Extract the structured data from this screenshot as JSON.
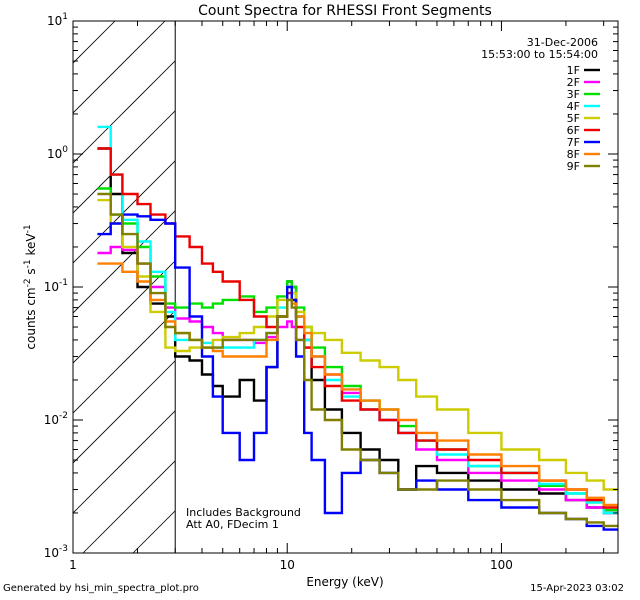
{
  "chart_data": {
    "type": "line",
    "title": "Count Spectra for RHESSI Front Segments",
    "xlabel": "Energy (keV)",
    "ylabel": "counts cm^-2 s^-1 keV^-1",
    "x_scale": "log",
    "y_scale": "log",
    "xlim": [
      1,
      350
    ],
    "ylim": [
      0.001,
      10
    ],
    "x_ticks": [
      {
        "value": 1,
        "label": "1"
      },
      {
        "value": 10,
        "label": "10"
      },
      {
        "value": 100,
        "label": "100"
      }
    ],
    "y_ticks": [
      {
        "value": 0.001,
        "label": "10^-3"
      },
      {
        "value": 0.01,
        "label": "10^-2"
      },
      {
        "value": 0.1,
        "label": "10^-1"
      },
      {
        "value": 1,
        "label": "10^0"
      },
      {
        "value": 10,
        "label": "10^1"
      }
    ],
    "hatched_region_keV": [
      1,
      3
    ],
    "legend_position": "top-right",
    "date": "31-Dec-2006",
    "time_range": "15:53:00 to 15:54:00",
    "annotation_lines": [
      "Includes Background",
      "Att A0, FDecim 1"
    ],
    "series": [
      {
        "name": "1F",
        "color": "#000000",
        "x": [
          1.3,
          1.5,
          1.7,
          2.0,
          2.3,
          2.7,
          3.0,
          3.5,
          4.0,
          4.5,
          5.0,
          6.0,
          7.0,
          8.0,
          9.0,
          10.0,
          10.5,
          11.0,
          12.0,
          13.0,
          15.0,
          18.0,
          22.0,
          27.0,
          33.0,
          40.0,
          50.0,
          70.0,
          100.0,
          150.0,
          200.0,
          250.0,
          300.0
        ],
        "y": [
          1.1,
          0.5,
          0.18,
          0.1,
          0.075,
          0.06,
          0.03,
          0.028,
          0.022,
          0.018,
          0.015,
          0.02,
          0.014,
          0.025,
          0.06,
          0.11,
          0.1,
          0.06,
          0.04,
          0.02,
          0.012,
          0.008,
          0.006,
          0.005,
          0.003,
          0.0045,
          0.004,
          0.0035,
          0.003,
          0.0028,
          0.0025,
          0.0022,
          0.002
        ]
      },
      {
        "name": "2F",
        "color": "#ff00ff",
        "x": [
          1.3,
          1.5,
          1.7,
          2.0,
          2.3,
          2.7,
          3.0,
          3.5,
          4.0,
          4.5,
          5.0,
          6.0,
          7.0,
          8.0,
          9.0,
          10.0,
          10.5,
          11.0,
          12.0,
          13.0,
          15.0,
          18.0,
          22.0,
          27.0,
          33.0,
          40.0,
          50.0,
          70.0,
          100.0,
          150.0,
          200.0,
          250.0,
          300.0
        ],
        "y": [
          0.18,
          0.2,
          0.19,
          0.15,
          0.1,
          0.07,
          0.058,
          0.055,
          0.05,
          0.045,
          0.04,
          0.04,
          0.038,
          0.042,
          0.05,
          0.055,
          0.05,
          0.04,
          0.035,
          0.03,
          0.022,
          0.016,
          0.012,
          0.01,
          0.008,
          0.006,
          0.005,
          0.004,
          0.0035,
          0.003,
          0.0025,
          0.0022,
          0.002
        ]
      },
      {
        "name": "3F",
        "color": "#00e000",
        "x": [
          1.3,
          1.5,
          1.7,
          2.0,
          2.3,
          2.7,
          3.0,
          3.5,
          4.0,
          4.5,
          5.0,
          6.0,
          7.0,
          8.0,
          9.0,
          10.0,
          10.5,
          11.0,
          12.0,
          13.0,
          15.0,
          18.0,
          22.0,
          27.0,
          33.0,
          40.0,
          50.0,
          70.0,
          100.0,
          150.0,
          200.0,
          250.0,
          300.0
        ],
        "y": [
          0.55,
          0.35,
          0.3,
          0.2,
          0.12,
          0.075,
          0.07,
          0.075,
          0.07,
          0.075,
          0.08,
          0.085,
          0.065,
          0.07,
          0.085,
          0.11,
          0.1,
          0.07,
          0.05,
          0.035,
          0.025,
          0.018,
          0.014,
          0.012,
          0.009,
          0.007,
          0.006,
          0.0045,
          0.004,
          0.0032,
          0.0028,
          0.0024,
          0.0021
        ]
      },
      {
        "name": "4F",
        "color": "#00ffff",
        "x": [
          1.3,
          1.5,
          1.7,
          2.0,
          2.3,
          2.7,
          3.0,
          3.5,
          4.0,
          4.5,
          5.0,
          6.0,
          7.0,
          8.0,
          9.0,
          10.0,
          10.5,
          11.0,
          12.0,
          13.0,
          15.0,
          18.0,
          22.0,
          27.0,
          33.0,
          40.0,
          50.0,
          70.0,
          100.0,
          150.0,
          200.0,
          250.0,
          300.0
        ],
        "y": [
          1.6,
          0.7,
          0.32,
          0.22,
          0.13,
          0.065,
          0.04,
          0.04,
          0.038,
          0.035,
          0.035,
          0.035,
          0.04,
          0.045,
          0.07,
          0.1,
          0.09,
          0.06,
          0.04,
          0.03,
          0.02,
          0.015,
          0.012,
          0.01,
          0.008,
          0.007,
          0.0055,
          0.0045,
          0.004,
          0.0033,
          0.0028,
          0.0024,
          0.002
        ]
      },
      {
        "name": "5F",
        "color": "#cccc00",
        "x": [
          1.3,
          1.5,
          1.7,
          2.0,
          2.3,
          2.7,
          3.0,
          3.5,
          4.0,
          4.5,
          5.0,
          6.0,
          7.0,
          8.0,
          9.0,
          10.0,
          10.5,
          11.0,
          12.0,
          13.0,
          15.0,
          18.0,
          22.0,
          27.0,
          33.0,
          40.0,
          50.0,
          70.0,
          100.0,
          150.0,
          200.0,
          250.0,
          300.0
        ],
        "y": [
          0.45,
          0.3,
          0.2,
          0.12,
          0.065,
          0.035,
          0.033,
          0.035,
          0.035,
          0.04,
          0.042,
          0.045,
          0.05,
          0.06,
          0.08,
          0.1,
          0.09,
          0.065,
          0.05,
          0.045,
          0.04,
          0.032,
          0.028,
          0.025,
          0.02,
          0.015,
          0.012,
          0.008,
          0.006,
          0.005,
          0.004,
          0.0035,
          0.003
        ]
      },
      {
        "name": "6F",
        "color": "#ee0000",
        "x": [
          1.3,
          1.5,
          1.7,
          2.0,
          2.3,
          2.7,
          3.0,
          3.5,
          4.0,
          4.5,
          5.0,
          6.0,
          7.0,
          8.0,
          9.0,
          10.0,
          10.5,
          11.0,
          12.0,
          13.0,
          15.0,
          18.0,
          22.0,
          27.0,
          33.0,
          40.0,
          50.0,
          70.0,
          100.0,
          150.0,
          200.0,
          250.0,
          300.0
        ],
        "y": [
          1.1,
          0.7,
          0.5,
          0.42,
          0.35,
          0.3,
          0.24,
          0.2,
          0.15,
          0.13,
          0.11,
          0.08,
          0.06,
          0.05,
          0.06,
          0.09,
          0.08,
          0.05,
          0.035,
          0.025,
          0.018,
          0.014,
          0.012,
          0.01,
          0.008,
          0.007,
          0.006,
          0.005,
          0.004,
          0.0035,
          0.003,
          0.0025,
          0.0022
        ]
      },
      {
        "name": "7F",
        "color": "#0000ff",
        "x": [
          1.3,
          1.5,
          1.7,
          2.0,
          2.3,
          2.7,
          3.0,
          3.5,
          4.0,
          4.5,
          5.0,
          6.0,
          7.0,
          8.0,
          9.0,
          10.0,
          10.5,
          11.0,
          12.0,
          13.0,
          15.0,
          18.0,
          22.0,
          27.0,
          33.0,
          40.0,
          50.0,
          70.0,
          100.0,
          150.0,
          200.0,
          250.0,
          300.0
        ],
        "y": [
          0.25,
          0.3,
          0.35,
          0.34,
          0.32,
          0.3,
          0.14,
          0.06,
          0.03,
          0.015,
          0.008,
          0.005,
          0.008,
          0.025,
          0.06,
          0.1,
          0.08,
          0.03,
          0.008,
          0.005,
          0.002,
          0.004,
          0.005,
          0.004,
          0.003,
          0.0035,
          0.003,
          0.0025,
          0.0022,
          0.002,
          0.0018,
          0.0016,
          0.0015
        ]
      },
      {
        "name": "8F",
        "color": "#ff8000",
        "x": [
          1.3,
          1.5,
          1.7,
          2.0,
          2.3,
          2.7,
          3.0,
          3.5,
          4.0,
          4.5,
          5.0,
          6.0,
          7.0,
          8.0,
          9.0,
          10.0,
          10.5,
          11.0,
          12.0,
          13.0,
          15.0,
          18.0,
          22.0,
          27.0,
          33.0,
          40.0,
          50.0,
          70.0,
          100.0,
          150.0,
          200.0,
          250.0,
          300.0
        ],
        "y": [
          0.15,
          0.15,
          0.13,
          0.11,
          0.08,
          0.055,
          0.045,
          0.04,
          0.035,
          0.033,
          0.03,
          0.03,
          0.03,
          0.04,
          0.06,
          0.08,
          0.075,
          0.06,
          0.045,
          0.03,
          0.022,
          0.017,
          0.014,
          0.012,
          0.01,
          0.008,
          0.007,
          0.0055,
          0.0045,
          0.0035,
          0.003,
          0.0026,
          0.0023
        ]
      },
      {
        "name": "9F",
        "color": "#808000",
        "x": [
          1.3,
          1.5,
          1.7,
          2.0,
          2.3,
          2.7,
          3.0,
          3.5,
          4.0,
          4.5,
          5.0,
          6.0,
          7.0,
          8.0,
          9.0,
          10.0,
          10.5,
          11.0,
          12.0,
          13.0,
          15.0,
          18.0,
          22.0,
          27.0,
          33.0,
          40.0,
          50.0,
          70.0,
          100.0,
          150.0,
          200.0,
          250.0,
          300.0
        ],
        "y": [
          0.5,
          0.35,
          0.25,
          0.15,
          0.09,
          0.05,
          0.045,
          0.04,
          0.035,
          0.035,
          0.04,
          0.04,
          0.04,
          0.045,
          0.06,
          0.08,
          0.07,
          0.04,
          0.02,
          0.012,
          0.01,
          0.006,
          0.005,
          0.004,
          0.003,
          0.003,
          0.0035,
          0.003,
          0.0025,
          0.002,
          0.0018,
          0.0017,
          0.0016
        ]
      }
    ]
  },
  "footer": {
    "generated_by": "Generated by hsi_min_spectra_plot.pro",
    "timestamp": "15-Apr-2023 03:02"
  }
}
